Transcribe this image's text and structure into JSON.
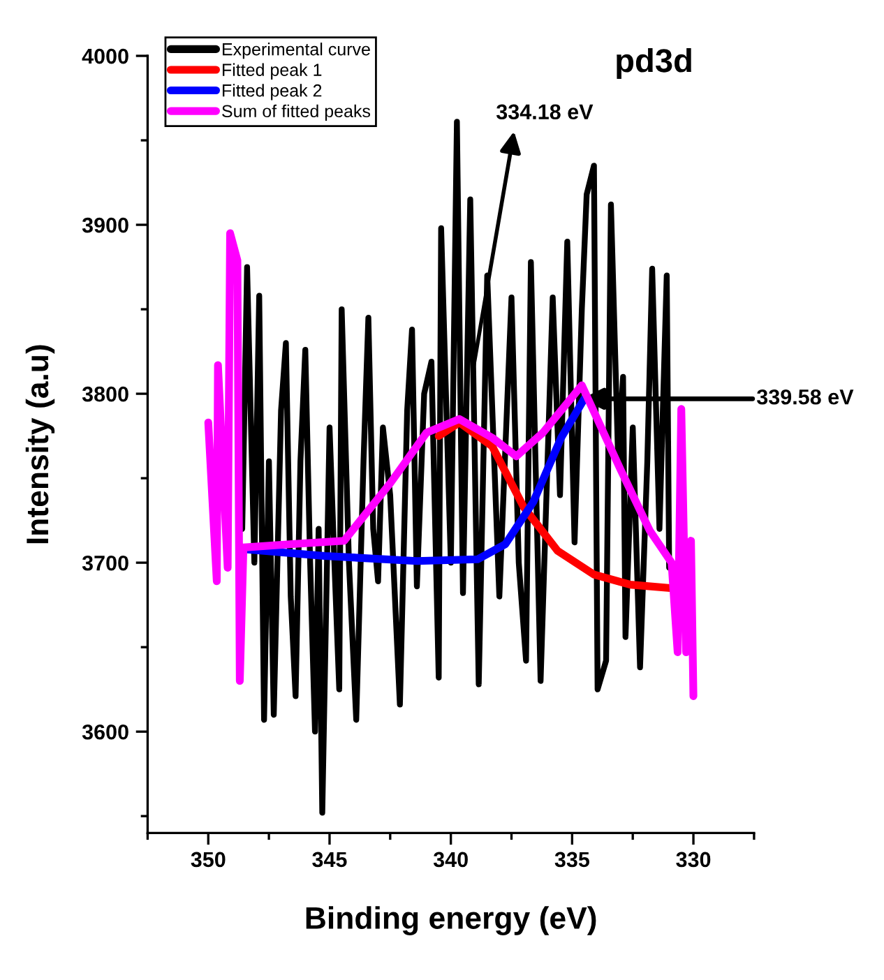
{
  "chart_data": {
    "type": "line",
    "xlabel": "Binding energy (eV)",
    "ylabel": "Intensity (a.u)",
    "xlim": [
      352.5,
      327.5
    ],
    "ylim": [
      3540,
      4000
    ],
    "xticks": [
      {
        "value": 352.5,
        "label": null
      },
      350,
      {
        "value": 347.5,
        "label": null
      },
      345,
      {
        "value": 342.5,
        "label": null
      },
      340,
      {
        "value": 337.5,
        "label": null
      },
      335,
      {
        "value": 332.5,
        "label": null
      },
      330,
      {
        "value": 327.5,
        "label": null
      }
    ],
    "yticks": [
      {
        "value": 3550,
        "label": null
      },
      3600,
      {
        "value": 3650,
        "label": null
      },
      3700,
      {
        "value": 3750,
        "label": null
      },
      3800,
      {
        "value": 3850,
        "label": null
      },
      3900,
      {
        "value": 3950,
        "label": null
      },
      4000
    ],
    "grid": false,
    "legend": "top left",
    "marker": "none",
    "line_style": "solid",
    "series": [
      {
        "name": "Experimental curve",
        "color": "#000000",
        "x": [
          348.6,
          348.4,
          348.1,
          347.9,
          347.7,
          347.5,
          347.3,
          347.0,
          346.8,
          346.6,
          346.4,
          346.2,
          346.0,
          345.8,
          345.6,
          345.45,
          345.3,
          345.0,
          344.8,
          344.6,
          344.5,
          344.2,
          343.9,
          343.6,
          343.4,
          343.2,
          343.0,
          342.8,
          342.5,
          342.1,
          341.8,
          341.6,
          341.4,
          341.1,
          340.8,
          340.5,
          340.4,
          340.0,
          339.75,
          339.5,
          339.2,
          338.85,
          338.5,
          338.0,
          337.5,
          337.2,
          336.9,
          336.7,
          336.3,
          335.8,
          335.5,
          335.2,
          334.9,
          334.6,
          334.4,
          334.1,
          333.95,
          333.6,
          333.4,
          333.1,
          332.9,
          332.8,
          332.5,
          332.2,
          331.9,
          331.7,
          331.4,
          331.1,
          331.0
        ],
        "values": [
          3720,
          3875,
          3700,
          3858,
          3607,
          3760,
          3610,
          3790,
          3830,
          3680,
          3621,
          3760,
          3826,
          3700,
          3600,
          3720,
          3552,
          3780,
          3700,
          3625,
          3850,
          3700,
          3607,
          3760,
          3845,
          3720,
          3689,
          3780,
          3740,
          3616,
          3790,
          3838,
          3686,
          3800,
          3819,
          3632,
          3898,
          3700,
          3961,
          3682,
          3915,
          3628,
          3870,
          3680,
          3857,
          3700,
          3642,
          3878,
          3630,
          3857,
          3740,
          3890,
          3712,
          3850,
          3918,
          3935,
          3625,
          3642,
          3912,
          3760,
          3810,
          3656,
          3780,
          3638,
          3760,
          3874,
          3720,
          3870,
          3697
        ]
      },
      {
        "name": "Fitted peak 1",
        "color": "#ff0000",
        "x": [
          340.5,
          339.65,
          338.3,
          337.0,
          335.6,
          334.1,
          332.6,
          330.95
        ],
        "values": [
          3775,
          3783,
          3769,
          3733,
          3707,
          3693,
          3687,
          3685
        ]
      },
      {
        "name": "Fitted peak 2",
        "color": "#0000ff",
        "x": [
          348.55,
          345.2,
          341.4,
          338.9,
          337.75,
          336.6,
          335.45,
          334.5
        ],
        "values": [
          3708,
          3704,
          3701,
          3702,
          3711,
          3736,
          3774,
          3797
        ]
      },
      {
        "name": "Sum of fitted peaks",
        "color": "#ff00ff",
        "x": [
          350.0,
          349.65,
          349.6,
          349.2,
          349.1,
          348.8,
          348.7,
          348.55,
          346.55,
          344.4,
          342.5,
          341.0,
          339.65,
          338.3,
          337.3,
          336.2,
          334.6,
          333.0,
          331.8,
          330.9,
          330.65,
          330.5,
          330.3,
          330.1,
          330.0
        ],
        "values": [
          3783,
          3689,
          3817,
          3697,
          3895,
          3879,
          3630,
          3709,
          3711,
          3713,
          3747,
          3777,
          3785,
          3774,
          3763,
          3777,
          3805,
          3755,
          3719,
          3700,
          3647,
          3791,
          3647,
          3713,
          3621
        ]
      }
    ],
    "annotations": [
      {
        "text": "334.18 eV",
        "x": 339.1,
        "y": 3813
      },
      {
        "text": "339.58 eV",
        "x": 334.6,
        "y": 3797
      },
      "pd3d"
    ]
  }
}
